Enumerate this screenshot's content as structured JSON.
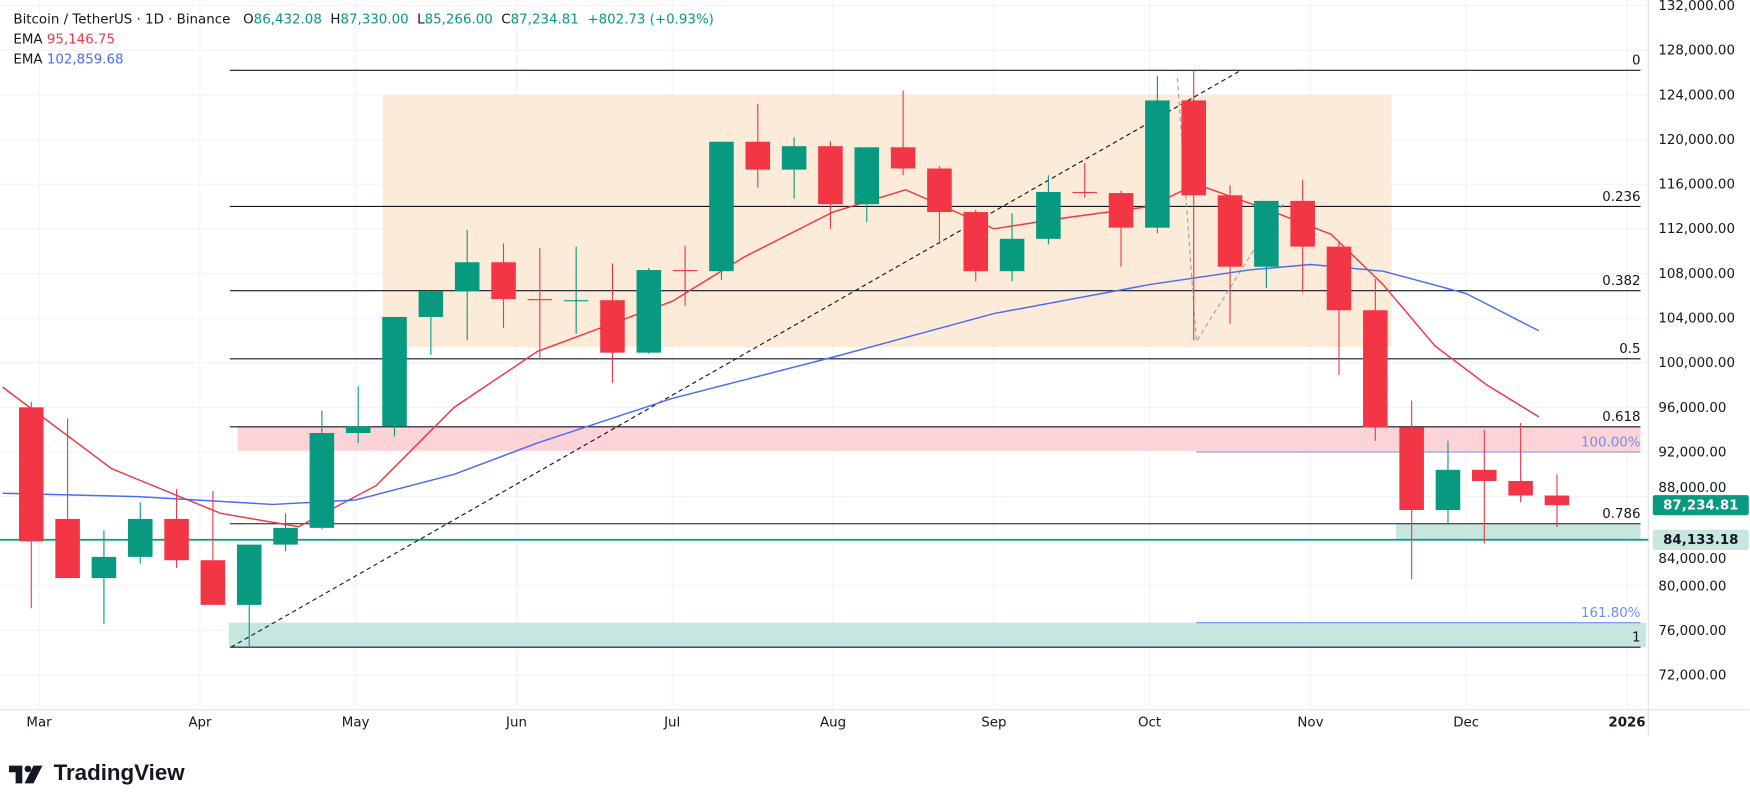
{
  "header": {
    "symbol": "Bitcoin / TetherUS · 1D · Binance",
    "open_label": "O",
    "open": "86,432.08",
    "high_label": "H",
    "high": "87,330.00",
    "low_label": "L",
    "low": "85,266.00",
    "close_label": "C",
    "close": "87,234.81",
    "change": "+802.73 (+0.93%)",
    "ema1_label": "EMA",
    "ema1_value": "95,146.75",
    "ema2_label": "EMA",
    "ema2_value": "102,859.68"
  },
  "brand": {
    "name": "TradingView"
  },
  "colors": {
    "up": "#089981",
    "down": "#f23645",
    "ema1": "#f23645",
    "ema2": "#4a6cf7",
    "fib_zone": "#fbe9d4",
    "resistance_zone": "#fcd3d6",
    "support_zone": "#c8e6e0"
  },
  "chart_data": {
    "type": "candlestick",
    "title": "Bitcoin / TetherUS · 1D · Binance",
    "ylim": [
      70000,
      132000
    ],
    "grid": true,
    "y_ticks": [
      "132,000.00",
      "128,000.00",
      "124,000.00",
      "120,000.00",
      "116,000.00",
      "112,000.00",
      "108,000.00",
      "104,000.00",
      "100,000.00",
      "96,000.00",
      "92,000.00",
      "88,000.00",
      "84,000.00",
      "80,000.00",
      "76,000.00",
      "72,000.00"
    ],
    "y_tick_values": [
      132000,
      128000,
      124000,
      120000,
      116000,
      112000,
      108000,
      104000,
      100000,
      96000,
      92000,
      88000,
      84000,
      80000,
      76000,
      72000
    ],
    "x_ticks": [
      {
        "label": "Mar",
        "date": "2025-03-01"
      },
      {
        "label": "Apr",
        "date": "2025-04-01"
      },
      {
        "label": "May",
        "date": "2025-05-01"
      },
      {
        "label": "Jun",
        "date": "2025-06-01"
      },
      {
        "label": "Jul",
        "date": "2025-07-01"
      },
      {
        "label": "Aug",
        "date": "2025-08-01"
      },
      {
        "label": "Sep",
        "date": "2025-09-01"
      },
      {
        "label": "Oct",
        "date": "2025-10-01"
      },
      {
        "label": "Nov",
        "date": "2025-11-01"
      },
      {
        "label": "Dec",
        "date": "2025-12-01"
      },
      {
        "label": "2026",
        "date": "2026-01-01"
      }
    ],
    "candles_weekly_approx": [
      [
        "2025-02-24",
        96000,
        96500,
        78000,
        84000
      ],
      [
        "2025-03-03",
        86000,
        95000,
        81500,
        80700
      ],
      [
        "2025-03-10",
        80700,
        85000,
        76600,
        82600
      ],
      [
        "2025-03-17",
        82600,
        87500,
        82000,
        86000
      ],
      [
        "2025-03-24",
        86000,
        88700,
        81600,
        82300
      ],
      [
        "2025-03-31",
        82300,
        88500,
        81200,
        78300
      ],
      [
        "2025-04-07",
        78300,
        83500,
        74500,
        83700
      ],
      [
        "2025-04-14",
        83700,
        86500,
        83100,
        85200
      ],
      [
        "2025-04-21",
        85200,
        95700,
        85100,
        93700
      ],
      [
        "2025-04-28",
        93700,
        97900,
        92800,
        94300
      ],
      [
        "2025-05-05",
        94300,
        104100,
        93400,
        104100
      ],
      [
        "2025-05-12",
        104100,
        105800,
        100700,
        106400
      ],
      [
        "2025-05-19",
        106400,
        111900,
        102000,
        109000
      ],
      [
        "2025-05-26",
        109000,
        110700,
        103100,
        105700
      ],
      [
        "2025-06-02",
        105700,
        110300,
        100300,
        105600
      ],
      [
        "2025-06-09",
        105600,
        110400,
        102600,
        105600
      ],
      [
        "2025-06-16",
        105600,
        108900,
        98200,
        100900
      ],
      [
        "2025-06-23",
        100900,
        108500,
        100800,
        108300
      ],
      [
        "2025-06-30",
        108300,
        110500,
        105100,
        108200
      ],
      [
        "2025-07-07",
        108200,
        118900,
        107400,
        119800
      ],
      [
        "2025-07-14",
        119800,
        123200,
        115700,
        117300
      ],
      [
        "2025-07-21",
        117300,
        120200,
        114700,
        119400
      ],
      [
        "2025-07-28",
        119400,
        119800,
        112000,
        114200
      ],
      [
        "2025-08-04",
        114200,
        119300,
        112600,
        119300
      ],
      [
        "2025-08-11",
        119300,
        124400,
        116800,
        117400
      ],
      [
        "2025-08-18",
        117400,
        117600,
        110600,
        113500
      ],
      [
        "2025-08-25",
        113500,
        113700,
        107300,
        108200
      ],
      [
        "2025-09-01",
        108200,
        113400,
        107300,
        111100
      ],
      [
        "2025-09-08",
        111100,
        116800,
        110600,
        115300
      ],
      [
        "2025-09-15",
        115300,
        117900,
        114800,
        115200
      ],
      [
        "2025-09-22",
        115200,
        115400,
        108600,
        112100
      ],
      [
        "2025-09-29",
        112100,
        125700,
        111600,
        123500
      ],
      [
        "2025-10-06",
        123500,
        126200,
        102000,
        115000
      ],
      [
        "2025-10-13",
        115000,
        115900,
        103500,
        108600
      ],
      [
        "2025-10-20",
        108600,
        114000,
        106700,
        114500
      ],
      [
        "2025-10-27",
        114500,
        116400,
        106300,
        110400
      ],
      [
        "2025-11-03",
        110400,
        110800,
        98900,
        104700
      ],
      [
        "2025-11-10",
        104700,
        107500,
        93000,
        94200
      ],
      [
        "2025-11-17",
        94200,
        96600,
        80600,
        86800
      ],
      [
        "2025-11-24",
        86800,
        93000,
        85500,
        90400
      ],
      [
        "2025-12-01",
        90400,
        94000,
        83800,
        89400
      ],
      [
        "2025-12-08",
        89400,
        94600,
        87500,
        88100
      ],
      [
        "2025-12-15",
        88100,
        90000,
        85266,
        87234.81
      ]
    ],
    "ema_series": [
      {
        "name": "EMA",
        "value_label": "95,146.75",
        "color": "#f23645",
        "points": [
          [
            "2025-02-22",
            97800
          ],
          [
            "2025-03-15",
            90500
          ],
          [
            "2025-04-05",
            86500
          ],
          [
            "2025-04-20",
            85300
          ],
          [
            "2025-05-05",
            89000
          ],
          [
            "2025-05-20",
            96000
          ],
          [
            "2025-06-05",
            101000
          ],
          [
            "2025-07-01",
            105500
          ],
          [
            "2025-07-15",
            109500
          ],
          [
            "2025-08-01",
            113500
          ],
          [
            "2025-08-15",
            115500
          ],
          [
            "2025-09-01",
            112000
          ],
          [
            "2025-09-15",
            113000
          ],
          [
            "2025-10-01",
            114000
          ],
          [
            "2025-10-10",
            116000
          ],
          [
            "2025-10-25",
            113500
          ],
          [
            "2025-11-05",
            111500
          ],
          [
            "2025-11-15",
            107000
          ],
          [
            "2025-11-25",
            101500
          ],
          [
            "2025-12-05",
            98000
          ],
          [
            "2025-12-15",
            95146.75
          ]
        ]
      },
      {
        "name": "EMA",
        "value_label": "102,859.68",
        "color": "#4a6cf7",
        "points": [
          [
            "2025-02-22",
            88300
          ],
          [
            "2025-03-20",
            88000
          ],
          [
            "2025-04-15",
            87300
          ],
          [
            "2025-05-01",
            87700
          ],
          [
            "2025-05-20",
            90000
          ],
          [
            "2025-06-05",
            92800
          ],
          [
            "2025-07-01",
            96800
          ],
          [
            "2025-08-01",
            100500
          ],
          [
            "2025-09-01",
            104400
          ],
          [
            "2025-10-01",
            107000
          ],
          [
            "2025-10-20",
            108300
          ],
          [
            "2025-11-01",
            108800
          ],
          [
            "2025-11-15",
            108200
          ],
          [
            "2025-12-01",
            106200
          ],
          [
            "2025-12-15",
            102859.68
          ]
        ]
      }
    ],
    "fib_retracement": {
      "levels": [
        {
          "label": "0",
          "price": 126199
        },
        {
          "label": "0.236",
          "price": 114000
        },
        {
          "label": "0.382",
          "price": 106453
        },
        {
          "label": "0.5",
          "price": 100353
        },
        {
          "label": "0.618",
          "price": 94254
        },
        {
          "label": "0.786",
          "price": 85569
        },
        {
          "label": "1",
          "price": 74508
        }
      ],
      "start_date": "2025-04-07",
      "end_date": "2025-10-06"
    },
    "fib_extension": [
      {
        "label": "100.00%",
        "price": 92000
      },
      {
        "label": "161.80%",
        "price": 76700
      }
    ],
    "price_labels": [
      {
        "label": "87,234.81",
        "price": 87234.81,
        "color": "#089981"
      },
      {
        "label": "84,133.18",
        "price": 84133.18,
        "color": "#c8e6e0"
      }
    ]
  }
}
